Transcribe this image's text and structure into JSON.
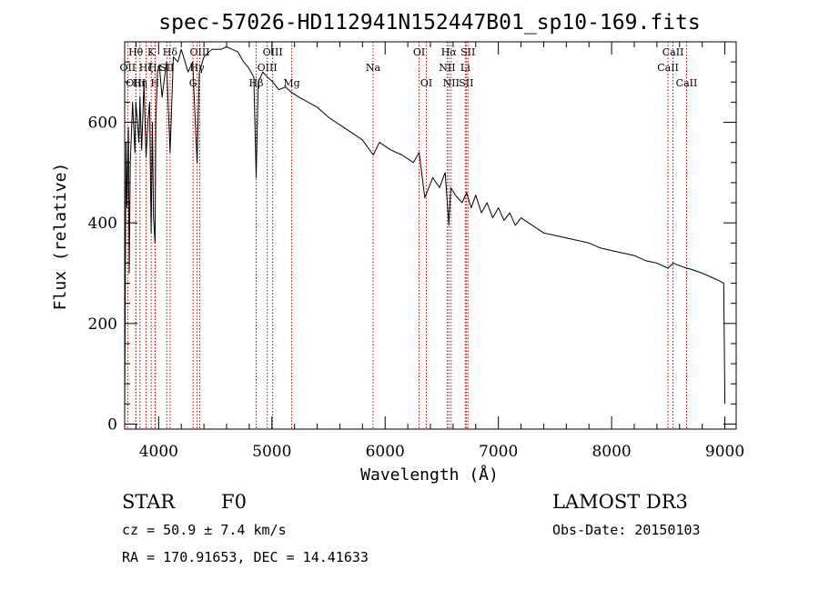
{
  "chart_data": {
    "type": "line",
    "title": "spec-57026-HD112941N152447B01_sp10-169.fits",
    "xlabel": "Wavelength (Å)",
    "ylabel": "Flux (relative)",
    "xlim": [
      3700,
      9100
    ],
    "ylim": [
      -10,
      760
    ],
    "xticks": [
      4000,
      5000,
      6000,
      7000,
      8000,
      9000
    ],
    "yticks": [
      0,
      200,
      400,
      600
    ],
    "series": [
      {
        "name": "flux",
        "x": [
          3700,
          3712,
          3720,
          3733,
          3740,
          3750,
          3770,
          3790,
          3798,
          3810,
          3825,
          3835,
          3850,
          3870,
          3889,
          3905,
          3920,
          3934,
          3945,
          3955,
          3968,
          3975,
          3990,
          4005,
          4030,
          4070,
          4101,
          4130,
          4170,
          4200,
          4260,
          4300,
          4340,
          4360,
          4400,
          4470,
          4550,
          4600,
          4650,
          4700,
          4750,
          4790,
          4840,
          4861,
          4880,
          4920,
          4960,
          5010,
          5060,
          5120,
          5170,
          5240,
          5320,
          5400,
          5500,
          5600,
          5700,
          5800,
          5895,
          5950,
          6050,
          6150,
          6250,
          6300,
          6350,
          6420,
          6480,
          6530,
          6563,
          6580,
          6620,
          6680,
          6720,
          6760,
          6800,
          6850,
          6900,
          6950,
          7000,
          7050,
          7100,
          7150,
          7200,
          7300,
          7400,
          7500,
          7600,
          7700,
          7800,
          7900,
          8000,
          8100,
          8200,
          8300,
          8400,
          8498,
          8542,
          8600,
          8662,
          8700,
          8800,
          8900,
          8950,
          8990,
          9000
        ],
        "values": [
          20,
          560,
          430,
          590,
          300,
          520,
          640,
          540,
          640,
          610,
          560,
          650,
          545,
          680,
          530,
          600,
          640,
          380,
          600,
          410,
          360,
          600,
          700,
          715,
          650,
          720,
          540,
          730,
          720,
          745,
          700,
          720,
          520,
          700,
          730,
          745,
          745,
          750,
          745,
          740,
          720,
          710,
          690,
          490,
          680,
          700,
          690,
          680,
          665,
          670,
          660,
          650,
          640,
          630,
          610,
          595,
          580,
          565,
          535,
          560,
          545,
          535,
          520,
          540,
          450,
          490,
          470,
          500,
          395,
          470,
          455,
          440,
          460,
          430,
          455,
          420,
          440,
          410,
          430,
          405,
          420,
          395,
          410,
          395,
          380,
          375,
          370,
          365,
          360,
          350,
          345,
          340,
          335,
          325,
          320,
          310,
          320,
          315,
          310,
          308,
          300,
          290,
          285,
          280,
          40
        ]
      }
    ],
    "lines": [
      {
        "name": "OII",
        "wavelength": 3727
      },
      {
        "name": "Hθ",
        "wavelength": 3798
      },
      {
        "name": "OIII",
        "wavelength": 3799
      },
      {
        "name": "Hη",
        "wavelength": 3835
      },
      {
        "name": "Hζ",
        "wavelength": 3889
      },
      {
        "name": "K",
        "wavelength": 3934
      },
      {
        "name": "H",
        "wavelength": 3968
      },
      {
        "name": "Hε",
        "wavelength": 3970
      },
      {
        "name": "SII",
        "wavelength": 4072
      },
      {
        "name": "Hδ",
        "wavelength": 4101
      },
      {
        "name": "G",
        "wavelength": 4304
      },
      {
        "name": "Hγ",
        "wavelength": 4340
      },
      {
        "name": "OIII",
        "wavelength": 4363
      },
      {
        "name": "Hβ",
        "wavelength": 4861
      },
      {
        "name": "OIII",
        "wavelength": 4959
      },
      {
        "name": "OIII",
        "wavelength": 5007
      },
      {
        "name": "Mg",
        "wavelength": 5175
      },
      {
        "name": "Na",
        "wavelength": 5893
      },
      {
        "name": "OI",
        "wavelength": 6300
      },
      {
        "name": "OI",
        "wavelength": 6364
      },
      {
        "name": "NII",
        "wavelength": 6548
      },
      {
        "name": "Hα",
        "wavelength": 6563
      },
      {
        "name": "NII",
        "wavelength": 6583
      },
      {
        "name": "Li",
        "wavelength": 6708
      },
      {
        "name": "SII",
        "wavelength": 6716
      },
      {
        "name": "SII",
        "wavelength": 6731
      },
      {
        "name": "CaII",
        "wavelength": 8498
      },
      {
        "name": "CaII",
        "wavelength": 8542
      },
      {
        "name": "CaII",
        "wavelength": 8662
      }
    ],
    "labels": [
      {
        "text": "Hθ",
        "wavelength": 3798,
        "row": 1
      },
      {
        "text": "OII",
        "wavelength": 3727,
        "row": 2
      },
      {
        "text": "OIII",
        "wavelength": 3799,
        "row": 3
      },
      {
        "text": "Hη",
        "wavelength": 3835,
        "row": 3
      },
      {
        "text": "K",
        "wavelength": 3934,
        "row": 1
      },
      {
        "text": "Hε",
        "wavelength": 3970,
        "row": 2
      },
      {
        "text": "H",
        "wavelength": 3968,
        "row": 3
      },
      {
        "text": "Hζ",
        "wavelength": 3889,
        "row": 2
      },
      {
        "text": "SII",
        "wavelength": 4072,
        "row": 2
      },
      {
        "text": "Hδ",
        "wavelength": 4101,
        "row": 1
      },
      {
        "text": "OIII",
        "wavelength": 4363,
        "row": 1
      },
      {
        "text": "Hγ",
        "wavelength": 4340,
        "row": 2
      },
      {
        "text": "G",
        "wavelength": 4304,
        "row": 3
      },
      {
        "text": "OIII",
        "wavelength": 5007,
        "row": 1
      },
      {
        "text": "OIII",
        "wavelength": 4959,
        "row": 2
      },
      {
        "text": "Hβ",
        "wavelength": 4861,
        "row": 3
      },
      {
        "text": "Mg",
        "wavelength": 5175,
        "row": 3
      },
      {
        "text": "Na",
        "wavelength": 5893,
        "row": 2
      },
      {
        "text": "OI",
        "wavelength": 6300,
        "row": 1
      },
      {
        "text": "OI",
        "wavelength": 6364,
        "row": 3
      },
      {
        "text": "Hα",
        "wavelength": 6563,
        "row": 1
      },
      {
        "text": "SII",
        "wavelength": 6731,
        "row": 1
      },
      {
        "text": "NII",
        "wavelength": 6548,
        "row": 2
      },
      {
        "text": "Li",
        "wavelength": 6708,
        "row": 2
      },
      {
        "text": "NII",
        "wavelength": 6583,
        "row": 3
      },
      {
        "text": "SII",
        "wavelength": 6716,
        "row": 3
      },
      {
        "text": "CaII",
        "wavelength": 8542,
        "row": 1
      },
      {
        "text": "CaII",
        "wavelength": 8498,
        "row": 2
      },
      {
        "text": "CaII",
        "wavelength": 8662,
        "row": 3
      }
    ]
  },
  "info": {
    "object_class": "STAR",
    "subclass": "F0",
    "survey": "LAMOST DR3",
    "redshift": "cz = 50.9 ± 7.4 km/s",
    "obs_date": "Obs-Date: 20150103",
    "coords": "RA = 170.91653, DEC =  14.41633"
  },
  "colors": {
    "line_marker": "#c00000",
    "spectrum": "#000000"
  }
}
